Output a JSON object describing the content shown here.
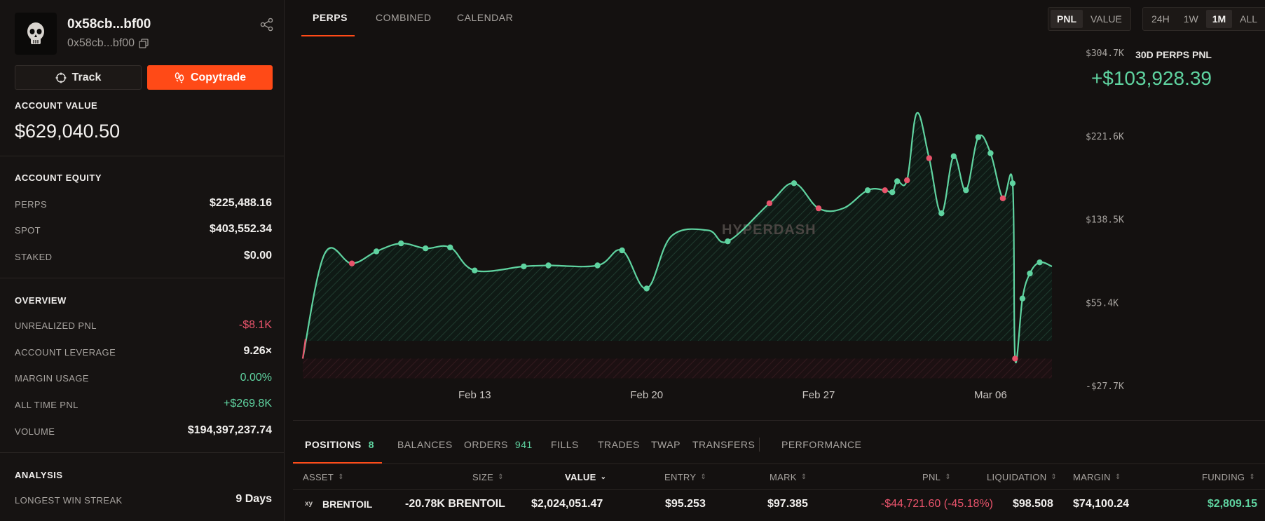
{
  "wallet": {
    "title": "0x58cb...bf00",
    "subtitle": "0x58cb...bf00"
  },
  "buttons": {
    "track": "Track",
    "copytrade": "Copytrade"
  },
  "account_value": {
    "label": "ACCOUNT VALUE",
    "value": "$629,040.50"
  },
  "equity": {
    "label": "ACCOUNT EQUITY",
    "rows": [
      {
        "label": "PERPS",
        "value": "$225,488.16"
      },
      {
        "label": "SPOT",
        "value": "$403,552.34"
      },
      {
        "label": "STAKED",
        "value": "$0.00"
      }
    ]
  },
  "overview": {
    "label": "OVERVIEW",
    "rows": [
      {
        "label": "UNREALIZED PNL",
        "value": "-$8.1K"
      },
      {
        "label": "ACCOUNT LEVERAGE",
        "value": "9.26×"
      },
      {
        "label": "MARGIN USAGE",
        "value": "0.00%"
      },
      {
        "label": "ALL TIME PNL",
        "value": "+$269.8K"
      },
      {
        "label": "VOLUME",
        "value": "$194,397,237.74"
      }
    ]
  },
  "analysis": {
    "label": "ANALYSIS",
    "rows": [
      {
        "label": "LONGEST WIN STREAK",
        "value": "9 Days"
      }
    ]
  },
  "top_tabs": [
    "PERPS",
    "COMBINED",
    "CALENDAR"
  ],
  "metric_toggle": [
    "PNL",
    "VALUE"
  ],
  "range_toggle": [
    "24H",
    "1W",
    "1M",
    "ALL"
  ],
  "chart_header": {
    "label": "30D PERPS PNL",
    "value": "+$103,928.39"
  },
  "watermark": "HYPERDASH",
  "colors": {
    "accent": "#ff4a17",
    "positive": "#5fd3a0",
    "negative": "#e8536b",
    "background": "#141110"
  },
  "chart_data": {
    "type": "line",
    "y_ticks": [
      "$304.7K",
      "$221.6K",
      "$138.5K",
      "$55.4K",
      "-$27.7K"
    ],
    "y_tick_values": [
      304.7,
      221.6,
      138.5,
      55.4,
      -27.7
    ],
    "ylim": [
      -27.7,
      304.7
    ],
    "x_ticks": [
      "Feb 13",
      "Feb 20",
      "Feb 27",
      "Mar 06"
    ],
    "x_tick_days": [
      7.0,
      14.0,
      21.0,
      28.0
    ],
    "xlim": [
      0,
      30.5
    ],
    "series": [
      {
        "values_k": [
          [
            0.0,
            0.0
          ],
          [
            0.9,
            105.0
          ],
          [
            2.0,
            95.0
          ],
          [
            3.0,
            107.0
          ],
          [
            4.0,
            115.0
          ],
          [
            5.0,
            110.0
          ],
          [
            6.0,
            111.0
          ],
          [
            7.0,
            88.0
          ],
          [
            9.0,
            92.0
          ],
          [
            10.0,
            93.0
          ],
          [
            12.0,
            93.0
          ],
          [
            13.0,
            108.0
          ],
          [
            14.0,
            70.0
          ],
          [
            15.0,
            122.0
          ],
          [
            16.5,
            128.0
          ],
          [
            17.3,
            117.0
          ],
          [
            19.0,
            155.0
          ],
          [
            20.0,
            175.0
          ],
          [
            21.0,
            150.0
          ],
          [
            22.0,
            150.0
          ],
          [
            23.0,
            168.0
          ],
          [
            23.7,
            168.0
          ],
          [
            24.0,
            166.0
          ],
          [
            24.2,
            177.0
          ],
          [
            24.6,
            178.0
          ],
          [
            25.0,
            245.0
          ],
          [
            25.5,
            200.0
          ],
          [
            26.0,
            145.0
          ],
          [
            26.5,
            202.0
          ],
          [
            27.0,
            168.0
          ],
          [
            27.5,
            221.0
          ],
          [
            28.0,
            205.0
          ],
          [
            28.5,
            160.0
          ],
          [
            28.9,
            175.0
          ],
          [
            29.0,
            0.0
          ],
          [
            29.3,
            60.0
          ],
          [
            29.6,
            85.0
          ],
          [
            30.0,
            96.0
          ],
          [
            30.5,
            92.0
          ]
        ],
        "marker_days": [
          2.0,
          3.0,
          4.0,
          5.0,
          6.0,
          7.0,
          9.0,
          10.0,
          12.0,
          13.0,
          14.0,
          17.3,
          19.0,
          20.0,
          21.0,
          23.0,
          23.7,
          24.0,
          24.2,
          24.6,
          25.5,
          26.0,
          26.5,
          27.0,
          27.5,
          28.0,
          28.5,
          28.9,
          29.0,
          29.3,
          29.6,
          30.0
        ],
        "negative_marker_days": [
          2.0,
          19.0,
          21.0,
          23.7,
          24.6,
          25.5,
          28.5,
          29.0
        ]
      }
    ]
  },
  "bottom_tabs": [
    {
      "label": "POSITIONS",
      "badge": "8"
    },
    {
      "label": "BALANCES",
      "badge": ""
    },
    {
      "label": "ORDERS",
      "badge": "941"
    },
    {
      "label": "FILLS",
      "badge": ""
    },
    {
      "label": "TRADES",
      "badge": ""
    },
    {
      "label": "TWAP",
      "badge": ""
    },
    {
      "label": "TRANSFERS",
      "badge": ""
    },
    {
      "label": "PERFORMANCE",
      "badge": ""
    }
  ],
  "table": {
    "headers": [
      "ASSET",
      "SIZE",
      "VALUE",
      "ENTRY",
      "MARK",
      "PNL",
      "LIQUIDATION",
      "MARGIN",
      "FUNDING"
    ],
    "rows": [
      {
        "asset_prefix": "xy",
        "asset": "BRENTOIL",
        "size": "-20.78K BRENTOIL",
        "value": "$2,024,051.47",
        "entry": "$95.253",
        "mark": "$97.385",
        "pnl": "-$44,721.60 (-45.18%)",
        "liquidation": "$98.508",
        "margin": "$74,100.24",
        "funding": "$2,809.15"
      }
    ]
  }
}
